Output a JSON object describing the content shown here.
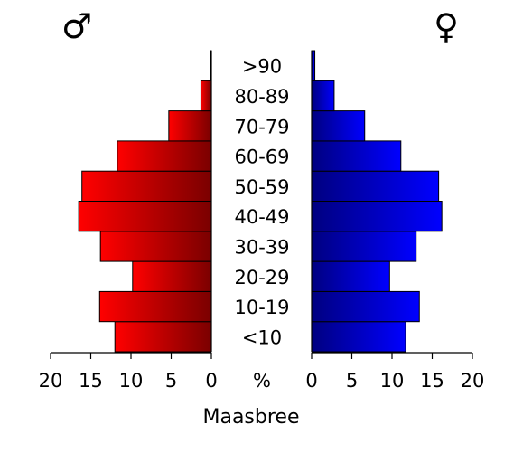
{
  "chart_data": {
    "type": "bar",
    "orientation": "horizontal-pyramid",
    "categories": [
      "<10",
      "10-19",
      "20-29",
      "30-39",
      "40-49",
      "50-59",
      "60-69",
      "70-79",
      "80-89",
      ">90"
    ],
    "series": [
      {
        "side": "left",
        "symbol": "♂",
        "color_light": "#ff0000",
        "color_dark": "#7a0000",
        "values": [
          12.0,
          13.9,
          9.8,
          13.8,
          16.5,
          16.1,
          11.7,
          5.3,
          1.3,
          0.1
        ]
      },
      {
        "side": "right",
        "symbol": "♀",
        "color_light": "#0000ff",
        "color_dark": "#000080",
        "values": [
          11.7,
          13.4,
          9.7,
          13.0,
          16.2,
          15.8,
          11.1,
          6.6,
          2.8,
          0.4
        ]
      }
    ],
    "xlim": [
      0,
      20
    ],
    "xticks": [
      "20",
      "15",
      "10",
      "5",
      "0",
      "%",
      "0",
      "5",
      "10",
      "15",
      "20"
    ],
    "xlabel": "Maasbree",
    "legend": "none",
    "grid": false
  }
}
